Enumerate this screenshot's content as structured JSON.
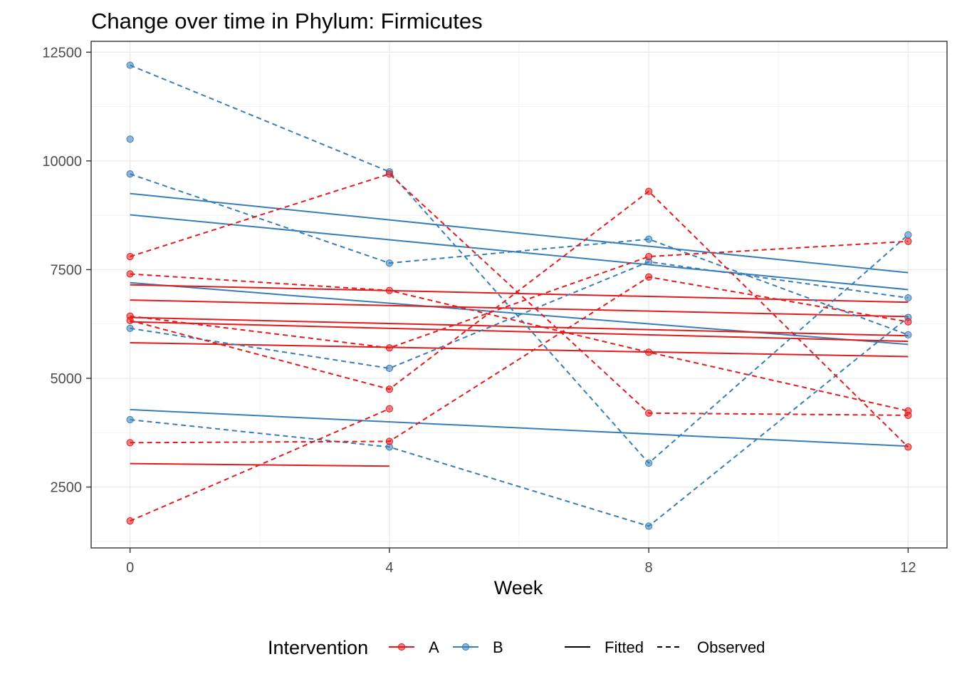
{
  "chart_data": {
    "type": "line",
    "title": "Change over time in Phylum: Firmicutes",
    "xlabel": "Week",
    "ylabel": "",
    "x_ticks": [
      0,
      4,
      8,
      12
    ],
    "y_ticks": [
      2500,
      5000,
      7500,
      10000,
      12500
    ],
    "xlim": [
      -0.6,
      12.6
    ],
    "ylim": [
      1100,
      12750
    ],
    "grid": true,
    "legend": {
      "position": "bottom",
      "color_title": "Intervention",
      "color_entries": [
        {
          "label": "A",
          "color": "#e41a1c"
        },
        {
          "label": "B",
          "color": "#377eb8"
        }
      ],
      "linetype_entries": [
        {
          "label": "Fitted",
          "dash": "solid"
        },
        {
          "label": "Observed",
          "dash": "dashed"
        }
      ]
    },
    "colors": {
      "A": "#e41a1c",
      "B": "#377eb8"
    },
    "observed": [
      {
        "group": "B",
        "x": [
          0,
          4,
          8,
          12
        ],
        "y": [
          12200,
          9750,
          3050,
          8300
        ]
      },
      {
        "group": "B",
        "x": [
          0,
          4,
          8,
          12
        ],
        "y": [
          9700,
          7650,
          8200,
          6000
        ]
      },
      {
        "group": "B",
        "x": [
          0,
          4,
          8,
          12
        ],
        "y": [
          6150,
          5230,
          7680,
          6850
        ]
      },
      {
        "group": "B",
        "x": [
          0,
          4,
          8,
          12
        ],
        "y": [
          4050,
          3420,
          1600,
          6400
        ]
      },
      {
        "group": "B",
        "x": [
          0
        ],
        "y": [
          10500
        ]
      },
      {
        "group": "A",
        "x": [
          0,
          4,
          8,
          12
        ],
        "y": [
          7800,
          9700,
          4200,
          4150
        ]
      },
      {
        "group": "A",
        "x": [
          0,
          4,
          8,
          12
        ],
        "y": [
          7400,
          7020,
          5600,
          4250
        ]
      },
      {
        "group": "A",
        "x": [
          0,
          4,
          8,
          12
        ],
        "y": [
          6430,
          5700,
          7800,
          8150
        ]
      },
      {
        "group": "A",
        "x": [
          0,
          4,
          8,
          12
        ],
        "y": [
          6330,
          4750,
          9300,
          3420
        ]
      },
      {
        "group": "A",
        "x": [
          0,
          4,
          8,
          12
        ],
        "y": [
          3520,
          3550,
          7330,
          6300
        ]
      },
      {
        "group": "A",
        "x": [
          0,
          4
        ],
        "y": [
          1720,
          4300
        ]
      }
    ],
    "fitted": [
      {
        "group": "B",
        "x": [
          0,
          12
        ],
        "y": [
          9250,
          7430
        ]
      },
      {
        "group": "B",
        "x": [
          0,
          12
        ],
        "y": [
          8760,
          7040
        ]
      },
      {
        "group": "B",
        "x": [
          0,
          12
        ],
        "y": [
          7200,
          5780
        ]
      },
      {
        "group": "B",
        "x": [
          0,
          12
        ],
        "y": [
          4280,
          3440
        ]
      },
      {
        "group": "A",
        "x": [
          0,
          12
        ],
        "y": [
          7150,
          6750
        ]
      },
      {
        "group": "A",
        "x": [
          0,
          12
        ],
        "y": [
          6800,
          6420
        ]
      },
      {
        "group": "A",
        "x": [
          0,
          12
        ],
        "y": [
          6400,
          5980
        ]
      },
      {
        "group": "A",
        "x": [
          0,
          12
        ],
        "y": [
          6300,
          5850
        ]
      },
      {
        "group": "A",
        "x": [
          0,
          12
        ],
        "y": [
          5820,
          5500
        ]
      },
      {
        "group": "A",
        "x": [
          0,
          4
        ],
        "y": [
          3040,
          2980
        ]
      }
    ]
  }
}
